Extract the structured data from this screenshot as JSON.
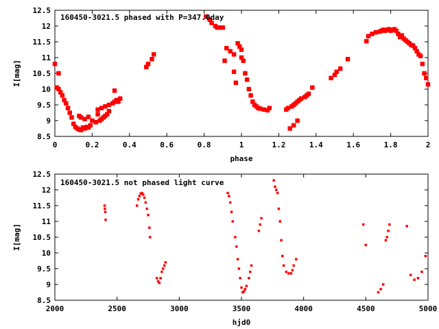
{
  "chart_data": [
    {
      "type": "scatter",
      "title": "160450-3021.5 phased with P=347.0day",
      "xlabel": "phase",
      "ylabel": "I[mag]",
      "xlim": [
        0,
        2
      ],
      "ylim": [
        12.5,
        8.5
      ],
      "y_inverted": true,
      "grid": false,
      "legend": "none",
      "marker_color": "#ff0000",
      "xticks": [
        "0",
        "0.2",
        "0.4",
        "0.6",
        "0.8",
        "1",
        "1.2",
        "1.4",
        "1.6",
        "1.8",
        "2"
      ],
      "yticks": [
        "8.5",
        "9",
        "9.5",
        "10",
        "10.5",
        "11",
        "11.5",
        "12",
        "12.5"
      ],
      "series": [
        {
          "points": [
            [
              0.0,
              10.8
            ],
            [
              0.01,
              10.05
            ],
            [
              0.02,
              10.0
            ],
            [
              0.02,
              10.5
            ],
            [
              0.03,
              9.9
            ],
            [
              0.04,
              9.8
            ],
            [
              0.05,
              9.65
            ],
            [
              0.06,
              9.55
            ],
            [
              0.07,
              9.4
            ],
            [
              0.08,
              9.25
            ],
            [
              0.09,
              9.1
            ],
            [
              0.1,
              8.9
            ],
            [
              0.11,
              8.8
            ],
            [
              0.12,
              8.75
            ],
            [
              0.13,
              8.72
            ],
            [
              0.14,
              8.7
            ],
            [
              0.15,
              8.78
            ],
            [
              0.16,
              8.75
            ],
            [
              0.17,
              8.8
            ],
            [
              0.18,
              8.78
            ],
            [
              0.19,
              8.85
            ],
            [
              0.13,
              9.15
            ],
            [
              0.14,
              9.1
            ],
            [
              0.16,
              9.05
            ],
            [
              0.18,
              9.12
            ],
            [
              0.2,
              9.0
            ],
            [
              0.22,
              8.95
            ],
            [
              0.23,
              9.2
            ],
            [
              0.24,
              9.0
            ],
            [
              0.25,
              9.05
            ],
            [
              0.26,
              9.1
            ],
            [
              0.27,
              9.15
            ],
            [
              0.28,
              9.2
            ],
            [
              0.29,
              9.3
            ],
            [
              0.23,
              9.35
            ],
            [
              0.25,
              9.4
            ],
            [
              0.27,
              9.45
            ],
            [
              0.29,
              9.5
            ],
            [
              0.31,
              9.55
            ],
            [
              0.32,
              9.6
            ],
            [
              0.33,
              9.65
            ],
            [
              0.34,
              9.6
            ],
            [
              0.35,
              9.7
            ],
            [
              0.32,
              9.95
            ],
            [
              0.49,
              10.7
            ],
            [
              0.5,
              10.8
            ],
            [
              0.52,
              10.95
            ],
            [
              0.53,
              11.1
            ],
            [
              0.81,
              12.3
            ],
            [
              0.83,
              12.2
            ],
            [
              0.84,
              12.1
            ],
            [
              0.86,
              12.0
            ],
            [
              0.87,
              11.95
            ],
            [
              0.89,
              11.95
            ],
            [
              0.9,
              11.95
            ],
            [
              0.91,
              10.9
            ],
            [
              0.92,
              11.3
            ],
            [
              0.94,
              11.2
            ],
            [
              0.96,
              11.1
            ],
            [
              0.96,
              10.55
            ],
            [
              0.97,
              10.2
            ],
            [
              0.98,
              11.45
            ],
            [
              0.99,
              11.35
            ],
            [
              1.0,
              11.25
            ],
            [
              1.0,
              11.0
            ],
            [
              1.01,
              10.9
            ],
            [
              1.02,
              10.5
            ],
            [
              1.03,
              10.3
            ],
            [
              1.04,
              10.0
            ],
            [
              1.05,
              9.8
            ],
            [
              1.06,
              9.6
            ],
            [
              1.07,
              9.5
            ],
            [
              1.08,
              9.45
            ],
            [
              1.09,
              9.4
            ],
            [
              1.1,
              9.38
            ],
            [
              1.12,
              9.35
            ],
            [
              1.14,
              9.33
            ],
            [
              1.15,
              9.4
            ],
            [
              1.24,
              9.35
            ],
            [
              1.25,
              9.4
            ],
            [
              1.27,
              9.45
            ],
            [
              1.28,
              9.5
            ],
            [
              1.29,
              9.55
            ],
            [
              1.3,
              9.6
            ],
            [
              1.31,
              9.65
            ],
            [
              1.32,
              9.7
            ],
            [
              1.34,
              9.75
            ],
            [
              1.35,
              9.8
            ],
            [
              1.36,
              9.85
            ],
            [
              1.38,
              10.05
            ],
            [
              1.26,
              8.75
            ],
            [
              1.28,
              8.85
            ],
            [
              1.3,
              9.0
            ],
            [
              1.48,
              10.35
            ],
            [
              1.5,
              10.45
            ],
            [
              1.51,
              10.55
            ],
            [
              1.53,
              10.65
            ],
            [
              1.57,
              10.95
            ],
            [
              1.67,
              11.52
            ],
            [
              1.68,
              11.68
            ],
            [
              1.7,
              11.75
            ],
            [
              1.72,
              11.8
            ],
            [
              1.74,
              11.82
            ],
            [
              1.75,
              11.85
            ],
            [
              1.76,
              11.88
            ],
            [
              1.77,
              11.85
            ],
            [
              1.78,
              11.88
            ],
            [
              1.79,
              11.9
            ],
            [
              1.8,
              11.85
            ],
            [
              1.81,
              11.88
            ],
            [
              1.82,
              11.9
            ],
            [
              1.83,
              11.85
            ],
            [
              1.84,
              11.75
            ],
            [
              1.85,
              11.65
            ],
            [
              1.86,
              11.7
            ],
            [
              1.87,
              11.6
            ],
            [
              1.88,
              11.55
            ],
            [
              1.89,
              11.5
            ],
            [
              1.9,
              11.45
            ],
            [
              1.91,
              11.4
            ],
            [
              1.92,
              11.38
            ],
            [
              1.93,
              11.3
            ],
            [
              1.94,
              11.2
            ],
            [
              1.95,
              11.1
            ],
            [
              1.96,
              11.05
            ],
            [
              1.97,
              10.8
            ],
            [
              1.98,
              10.5
            ],
            [
              1.99,
              10.35
            ],
            [
              2.0,
              10.15
            ]
          ]
        }
      ]
    },
    {
      "type": "scatter",
      "title": "160450-3021.5 not phased light curve",
      "xlabel": "hjd0",
      "ylabel": "I[mag]",
      "xlim": [
        2000,
        5000
      ],
      "ylim": [
        12.5,
        8.5
      ],
      "y_inverted": true,
      "grid": false,
      "legend": "none",
      "marker_color": "#ff0000",
      "xticks": [
        "2000",
        "2500",
        "3000",
        "3500",
        "4000",
        "4500",
        "5000"
      ],
      "yticks": [
        "8.5",
        "9",
        "9.5",
        "10",
        "10.5",
        "11",
        "11.5",
        "12",
        "12.5"
      ],
      "series": [
        {
          "points": [
            [
              2400,
              11.5
            ],
            [
              2402,
              11.4
            ],
            [
              2405,
              11.3
            ],
            [
              2408,
              11.05
            ],
            [
              2660,
              11.5
            ],
            [
              2670,
              11.7
            ],
            [
              2680,
              11.8
            ],
            [
              2690,
              11.88
            ],
            [
              2700,
              11.9
            ],
            [
              2710,
              11.85
            ],
            [
              2720,
              11.75
            ],
            [
              2730,
              11.6
            ],
            [
              2740,
              11.4
            ],
            [
              2750,
              11.2
            ],
            [
              2760,
              10.8
            ],
            [
              2765,
              10.5
            ],
            [
              2820,
              9.2
            ],
            [
              2830,
              9.1
            ],
            [
              2840,
              9.05
            ],
            [
              2850,
              9.2
            ],
            [
              2860,
              9.4
            ],
            [
              2870,
              9.5
            ],
            [
              2880,
              9.6
            ],
            [
              2890,
              9.7
            ],
            [
              3390,
              11.9
            ],
            [
              3400,
              11.8
            ],
            [
              3410,
              11.6
            ],
            [
              3420,
              11.3
            ],
            [
              3430,
              11.0
            ],
            [
              3450,
              10.5
            ],
            [
              3460,
              10.2
            ],
            [
              3470,
              9.8
            ],
            [
              3480,
              9.5
            ],
            [
              3490,
              9.2
            ],
            [
              3500,
              8.9
            ],
            [
              3510,
              8.75
            ],
            [
              3520,
              8.78
            ],
            [
              3530,
              8.85
            ],
            [
              3540,
              8.95
            ],
            [
              3560,
              9.2
            ],
            [
              3570,
              9.4
            ],
            [
              3580,
              9.6
            ],
            [
              3640,
              10.7
            ],
            [
              3650,
              10.9
            ],
            [
              3660,
              11.1
            ],
            [
              3760,
              12.3
            ],
            [
              3770,
              12.1
            ],
            [
              3780,
              12.0
            ],
            [
              3790,
              11.9
            ],
            [
              3800,
              11.4
            ],
            [
              3810,
              11.0
            ],
            [
              3820,
              10.4
            ],
            [
              3830,
              9.9
            ],
            [
              3840,
              9.6
            ],
            [
              3860,
              9.4
            ],
            [
              3880,
              9.35
            ],
            [
              3900,
              9.35
            ],
            [
              3910,
              9.45
            ],
            [
              3920,
              9.6
            ],
            [
              3940,
              9.8
            ],
            [
              4480,
              10.9
            ],
            [
              4500,
              10.25
            ],
            [
              4600,
              8.75
            ],
            [
              4620,
              8.85
            ],
            [
              4640,
              9.0
            ],
            [
              4660,
              10.4
            ],
            [
              4670,
              10.5
            ],
            [
              4680,
              10.7
            ],
            [
              4690,
              10.9
            ],
            [
              4830,
              10.85
            ],
            [
              4860,
              9.3
            ],
            [
              4890,
              9.15
            ],
            [
              4920,
              9.2
            ],
            [
              4950,
              9.4
            ],
            [
              4980,
              9.9
            ]
          ]
        }
      ]
    }
  ]
}
